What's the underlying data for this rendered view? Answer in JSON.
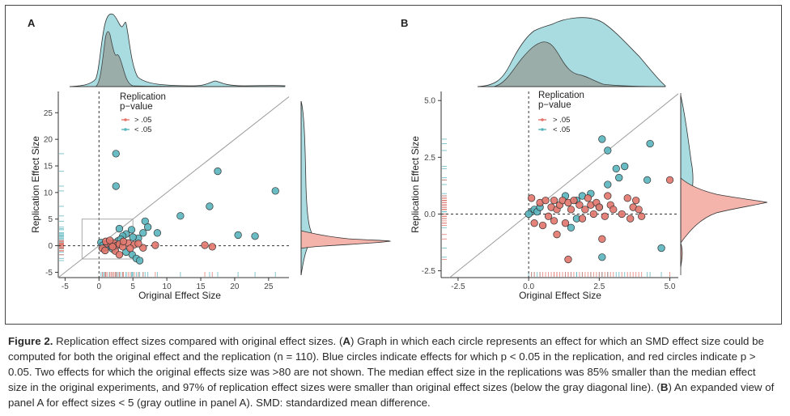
{
  "colors": {
    "blue": "#5ab5be",
    "blue_fill": "#a9dce0",
    "red": "#e2766c",
    "red_fill": "#f4b3ab",
    "gray_density": "#9aa8a3",
    "diag": "#9c9c9c"
  },
  "chart_data": [
    {
      "type": "scatter",
      "panel": "A",
      "panel_label": "A",
      "xlabel": "Original Effect Size",
      "ylabel": "Replication Effect Size",
      "xlim": [
        -6,
        28
      ],
      "ylim": [
        -6,
        29
      ],
      "x_ticks": [
        -5,
        0,
        5,
        10,
        15,
        20,
        25
      ],
      "x_tick_labels": [
        "-5",
        "0",
        "5",
        "10",
        "15",
        "20",
        "25"
      ],
      "y_ticks": [
        -5,
        0,
        5,
        10,
        15,
        20,
        25
      ],
      "y_tick_labels": [
        "-5",
        "0",
        "5",
        "10",
        "15",
        "20",
        "25"
      ],
      "legend": {
        "title_line1": "Replication",
        "title_line2": "p−value",
        "entries": [
          "> .05",
          "< .05"
        ],
        "placement": "top-left"
      },
      "diagonal": true,
      "inset_box": {
        "x": [
          -2.5,
          5
        ],
        "y": [
          -2.5,
          5
        ]
      },
      "series": [
        {
          "name": "< .05",
          "color": "blue",
          "points": [
            [
              2.5,
              17.3
            ],
            [
              2.5,
              11.2
            ],
            [
              17.5,
              14.0
            ],
            [
              26.0,
              10.3
            ],
            [
              12.0,
              5.6
            ],
            [
              16.3,
              7.4
            ],
            [
              20.5,
              2.0
            ],
            [
              23.0,
              1.8
            ],
            [
              6.8,
              4.6
            ],
            [
              7.2,
              3.5
            ],
            [
              6.5,
              2.4
            ],
            [
              4.8,
              3.0
            ],
            [
              3.0,
              3.2
            ],
            [
              8.6,
              2.4
            ],
            [
              5.8,
              1.4
            ],
            [
              5.0,
              1.6
            ],
            [
              4.0,
              2.2
            ],
            [
              3.5,
              1.8
            ],
            [
              2.8,
              0.9
            ],
            [
              1.5,
              0.5
            ],
            [
              0.8,
              0.2
            ],
            [
              0.3,
              0.6
            ],
            [
              0.6,
              0.1
            ],
            [
              1.0,
              -0.3
            ],
            [
              2.0,
              -0.6
            ],
            [
              4.0,
              -1.2
            ],
            [
              4.9,
              -1.7
            ],
            [
              5.5,
              -2.4
            ],
            [
              6.0,
              -2.8
            ],
            [
              3.2,
              1.2
            ]
          ]
        },
        {
          "name": "> .05",
          "color": "red",
          "points": [
            [
              1.2,
              0.4
            ],
            [
              1.8,
              0.2
            ],
            [
              2.2,
              0.5
            ],
            [
              2.6,
              0.0
            ],
            [
              3.0,
              0.3
            ],
            [
              3.5,
              -0.2
            ],
            [
              4.3,
              0.5
            ],
            [
              5.2,
              0.2
            ],
            [
              6.5,
              -0.4
            ],
            [
              8.3,
              0.1
            ],
            [
              15.6,
              0.1
            ],
            [
              16.7,
              -0.2
            ],
            [
              2.4,
              -1.0
            ],
            [
              1.0,
              0.8
            ],
            [
              0.5,
              -0.5
            ],
            [
              1.6,
              1.0
            ],
            [
              3.6,
              0.8
            ],
            [
              4.6,
              -0.5
            ],
            [
              2.0,
              -0.2
            ],
            [
              5.8,
              0.4
            ],
            [
              0.9,
              -0.9
            ],
            [
              3.0,
              -1.7
            ]
          ]
        }
      ]
    },
    {
      "type": "scatter",
      "panel": "B",
      "panel_label": "B",
      "xlabel": "Original Effect Size",
      "ylabel": "Replication Effect Size",
      "xlim": [
        -3.1,
        5.3
      ],
      "ylim": [
        -2.8,
        5.4
      ],
      "x_ticks": [
        -2.5,
        0,
        2.5,
        5
      ],
      "x_tick_labels": [
        "-2.5",
        "0.0",
        "2.5",
        "5.0"
      ],
      "y_ticks": [
        -2.5,
        0,
        2.5,
        5
      ],
      "y_tick_labels": [
        "-2.5",
        "0.0",
        "2.5",
        "5.0"
      ],
      "legend": {
        "title_line1": "Replication",
        "title_line2": "p−value",
        "entries": [
          "> .05",
          "< .05"
        ],
        "placement": "top-center"
      },
      "diagonal": true,
      "series": [
        {
          "name": "< .05",
          "color": "blue",
          "points": [
            [
              2.6,
              3.3
            ],
            [
              2.8,
              2.8
            ],
            [
              4.3,
              3.1
            ],
            [
              3.1,
              2.0
            ],
            [
              3.4,
              2.1
            ],
            [
              4.2,
              1.5
            ],
            [
              3.2,
              1.6
            ],
            [
              2.8,
              1.3
            ],
            [
              1.3,
              0.8
            ],
            [
              1.7,
              0.6
            ],
            [
              1.9,
              0.8
            ],
            [
              2.2,
              0.9
            ],
            [
              2.5,
              0.3
            ],
            [
              4.7,
              -1.5
            ],
            [
              2.6,
              -1.9
            ],
            [
              1.7,
              -0.2
            ],
            [
              1.5,
              -0.6
            ],
            [
              0.1,
              0.1
            ],
            [
              0.2,
              0.2
            ],
            [
              0.3,
              0.1
            ],
            [
              0.0,
              0.0
            ],
            [
              0.4,
              0.3
            ]
          ]
        },
        {
          "name": "> .05",
          "color": "red",
          "points": [
            [
              0.1,
              0.7
            ],
            [
              0.4,
              0.5
            ],
            [
              0.6,
              0.6
            ],
            [
              0.8,
              0.3
            ],
            [
              0.9,
              0.6
            ],
            [
              1.0,
              0.2
            ],
            [
              1.1,
              0.4
            ],
            [
              1.2,
              0.6
            ],
            [
              1.4,
              0.5
            ],
            [
              1.5,
              0.2
            ],
            [
              1.6,
              0.6
            ],
            [
              1.8,
              0.4
            ],
            [
              2.0,
              0.2
            ],
            [
              2.1,
              0.7
            ],
            [
              2.2,
              0.4
            ],
            [
              2.3,
              0.0
            ],
            [
              2.4,
              0.5
            ],
            [
              2.5,
              0.3
            ],
            [
              2.7,
              -0.1
            ],
            [
              2.9,
              0.4
            ],
            [
              3.0,
              0.2
            ],
            [
              3.3,
              0.0
            ],
            [
              3.5,
              0.7
            ],
            [
              3.6,
              -0.2
            ],
            [
              3.8,
              0.6
            ],
            [
              3.7,
              0.3
            ],
            [
              3.9,
              0.2
            ],
            [
              4.0,
              -0.1
            ],
            [
              5.0,
              1.5
            ],
            [
              0.2,
              -0.4
            ],
            [
              0.5,
              -0.5
            ],
            [
              0.7,
              -0.1
            ],
            [
              1.3,
              -0.4
            ],
            [
              1.9,
              -0.2
            ],
            [
              2.6,
              -1.1
            ],
            [
              1.4,
              -2.0
            ],
            [
              0.9,
              -0.3
            ],
            [
              1.0,
              -0.9
            ],
            [
              2.8,
              0.8
            ]
          ]
        }
      ]
    }
  ],
  "caption": {
    "figure_label": "Figure 2.",
    "intro": " Replication effect sizes compared with original effect sizes. (",
    "a_label": "A",
    "part_a": ") Graph in which each circle represents an effect for which an SMD effect size could be computed for both the original effect and the replication (n = 110). Blue circles indicate effects for which p < 0.05 in the replication, and red circles indicate p > 0.05. Two effects for which the original effects size was >80 are not shown. The median effect size in the replications was 85% smaller than the median effect size in the original experiments, and 97% of replication effect sizes were smaller than original effect sizes (below the gray diagonal line). (",
    "b_label": "B",
    "part_b": ") An expanded view of panel A for effect sizes < 5 (gray outline in panel A). SMD: standardized mean difference."
  }
}
